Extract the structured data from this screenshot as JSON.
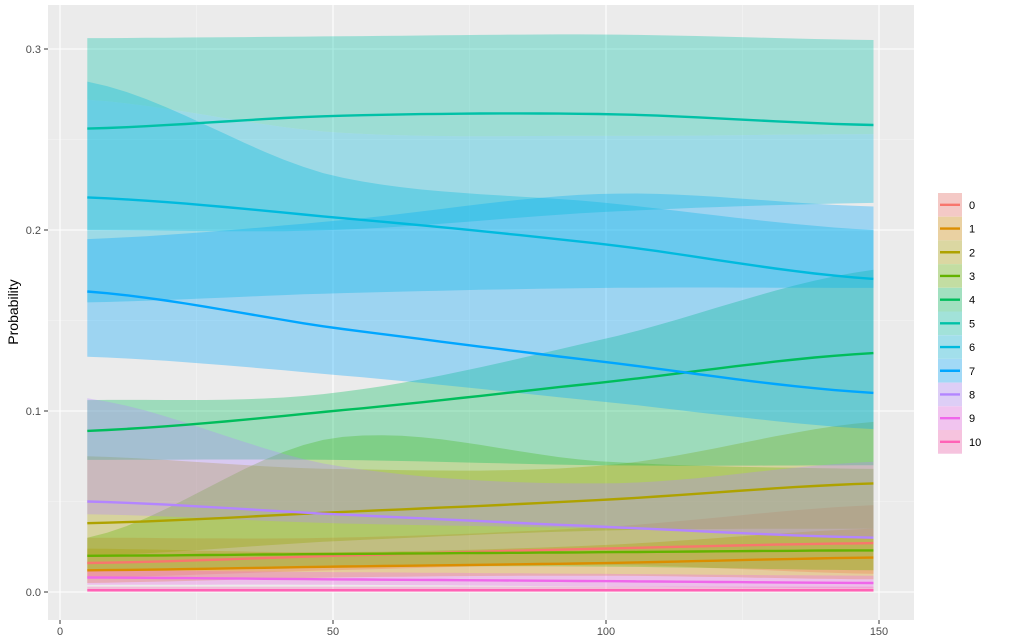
{
  "chart_data": {
    "type": "line",
    "title": "",
    "xlabel": "",
    "ylabel": "Probability",
    "xlim": [
      -2,
      154
    ],
    "ylim": [
      -0.016,
      0.324
    ],
    "x_ticks": [
      0,
      50,
      100,
      150
    ],
    "y_ticks": [
      0.0,
      0.1,
      0.2,
      0.3
    ],
    "x_tick_labels": [
      "0",
      "50",
      "100",
      "150"
    ],
    "y_tick_labels": [
      "0.0",
      "0.1",
      "0.2",
      "0.3"
    ],
    "grid": true,
    "legend_position": "right",
    "legend_title": "",
    "x": [
      5,
      50,
      100,
      149
    ],
    "series": [
      {
        "name": "0",
        "color": "#F8766D",
        "values": [
          0.016,
          0.02,
          0.024,
          0.027
        ],
        "lower": [
          0.008,
          0.012,
          0.015,
          0.01
        ],
        "upper": [
          0.03,
          0.03,
          0.036,
          0.048
        ]
      },
      {
        "name": "1",
        "color": "#DB8E00",
        "values": [
          0.012,
          0.014,
          0.016,
          0.019
        ],
        "lower": [
          0.005,
          0.008,
          0.009,
          0.007
        ],
        "upper": [
          0.024,
          0.022,
          0.026,
          0.035
        ]
      },
      {
        "name": "2",
        "color": "#AEA200",
        "values": [
          0.038,
          0.044,
          0.051,
          0.06
        ],
        "lower": [
          0.02,
          0.028,
          0.034,
          0.035
        ],
        "upper": [
          0.075,
          0.068,
          0.07,
          0.094
        ]
      },
      {
        "name": "3",
        "color": "#64B200",
        "values": [
          0.02,
          0.021,
          0.022,
          0.023
        ],
        "lower": [
          0.012,
          0.014,
          0.014,
          0.012
        ],
        "upper": [
          0.03,
          0.085,
          0.072,
          0.068
        ]
      },
      {
        "name": "4",
        "color": "#00BD5C",
        "values": [
          0.089,
          0.1,
          0.116,
          0.132
        ],
        "lower": [
          0.073,
          0.073,
          0.07,
          0.07
        ],
        "upper": [
          0.106,
          0.11,
          0.14,
          0.178
        ]
      },
      {
        "name": "5",
        "color": "#00C1A7",
        "values": [
          0.256,
          0.263,
          0.264,
          0.258
        ],
        "lower": [
          0.272,
          0.254,
          0.252,
          0.253
        ],
        "upper": [
          0.306,
          0.307,
          0.308,
          0.305
        ]
      },
      {
        "name": "6",
        "color": "#00BADE",
        "values": [
          0.218,
          0.207,
          0.192,
          0.173
        ],
        "lower": [
          0.16,
          0.165,
          0.168,
          0.168
        ],
        "upper": [
          0.282,
          0.23,
          0.215,
          0.2
        ]
      },
      {
        "name": "7",
        "color": "#00A6FF",
        "values": [
          0.166,
          0.146,
          0.127,
          0.11
        ],
        "lower": [
          0.13,
          0.12,
          0.105,
          0.09
        ],
        "upper": [
          0.195,
          0.205,
          0.22,
          0.213
        ]
      },
      {
        "name": "8",
        "color": "#B385FF",
        "values": [
          0.05,
          0.043,
          0.036,
          0.03
        ],
        "lower": [
          0.043,
          0.038,
          0.035,
          0.03
        ],
        "upper": [
          0.107,
          0.07,
          0.06,
          0.072
        ]
      },
      {
        "name": "9",
        "color": "#EF67EB",
        "values": [
          0.008,
          0.007,
          0.006,
          0.005
        ],
        "lower": [
          0.004,
          0.004,
          0.003,
          0.002
        ],
        "upper": [
          0.012,
          0.011,
          0.01,
          0.009
        ]
      },
      {
        "name": "10",
        "color": "#FF63B6",
        "values": [
          0.001,
          0.001,
          0.001,
          0.001
        ],
        "lower": [
          0.0,
          0.0,
          0.0,
          0.0
        ],
        "upper": [
          0.003,
          0.003,
          0.003,
          0.003
        ]
      }
    ],
    "second_band": {
      "5": {
        "lower": [
          0.2,
          0.2,
          0.21,
          0.215
        ],
        "upper": [
          0.272,
          0.254,
          0.252,
          0.253
        ]
      }
    }
  },
  "colors": {
    "panel_bg": "#EBEBEB",
    "grid_major": "#FFFFFF",
    "tick_text": "#4D4D4D"
  }
}
